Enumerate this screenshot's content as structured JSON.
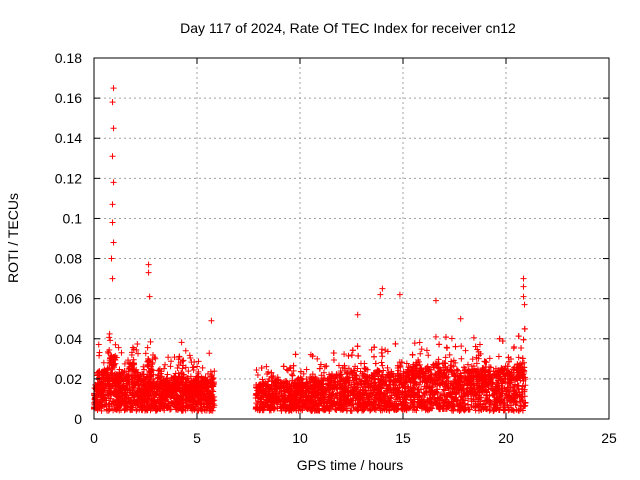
{
  "chart_data": {
    "type": "scatter",
    "title": "Day 117 of 2024, Rate Of TEC Index for receiver cn12",
    "xlabel": "GPS time / hours",
    "ylabel": "ROTI / TECUs",
    "xlim": [
      0,
      25
    ],
    "ylim": [
      0,
      0.18
    ],
    "x_ticks": [
      "0",
      "5",
      "10",
      "15",
      "20",
      "25"
    ],
    "y_ticks": [
      "0",
      "0.02",
      "0.04",
      "0.06",
      "0.08",
      "0.1",
      "0.12",
      "0.14",
      "0.16",
      "0.18"
    ],
    "grid": true,
    "marker": "plus",
    "color": "#ff0000",
    "segments": [
      {
        "x_start": 0.0,
        "x_end": 5.85
      },
      {
        "x_start": 7.85,
        "x_end": 20.95
      }
    ],
    "series": [
      {
        "x": [
          0.0,
          0.3,
          0.6,
          0.9,
          1.2,
          1.5,
          1.8,
          2.1,
          2.4,
          2.7,
          3.0,
          3.3,
          3.6,
          3.9,
          4.2,
          4.5,
          4.8,
          5.1,
          5.4,
          5.7,
          7.9,
          8.2,
          8.5,
          8.8,
          9.1,
          9.4,
          9.7,
          10.0,
          10.3,
          10.6,
          10.9,
          11.2,
          11.5,
          11.8,
          12.1,
          12.4,
          12.7,
          13.0,
          13.3,
          13.6,
          13.9,
          14.2,
          14.5,
          14.8,
          15.1,
          15.4,
          15.7,
          16.0,
          16.3,
          16.6,
          16.9,
          17.2,
          17.5,
          17.8,
          18.1,
          18.4,
          18.7,
          19.0,
          19.3,
          19.6,
          19.9,
          20.2,
          20.5,
          20.8
        ],
        "y": [
          0.012,
          0.018,
          0.02,
          0.025,
          0.018,
          0.016,
          0.022,
          0.019,
          0.017,
          0.024,
          0.016,
          0.015,
          0.014,
          0.016,
          0.018,
          0.015,
          0.014,
          0.017,
          0.015,
          0.016,
          0.012,
          0.013,
          0.012,
          0.014,
          0.013,
          0.014,
          0.013,
          0.015,
          0.014,
          0.016,
          0.014,
          0.015,
          0.016,
          0.017,
          0.015,
          0.018,
          0.02,
          0.017,
          0.016,
          0.018,
          0.019,
          0.017,
          0.018,
          0.02,
          0.018,
          0.02,
          0.022,
          0.021,
          0.019,
          0.022,
          0.02,
          0.021,
          0.019,
          0.018,
          0.02,
          0.021,
          0.019,
          0.02,
          0.018,
          0.019,
          0.02,
          0.021,
          0.02,
          0.022
        ]
      }
    ],
    "peaks": [
      {
        "x": 0.95,
        "y": 0.165
      },
      {
        "x": 0.9,
        "y": 0.158
      },
      {
        "x": 0.95,
        "y": 0.145
      },
      {
        "x": 0.9,
        "y": 0.131
      },
      {
        "x": 0.95,
        "y": 0.118
      },
      {
        "x": 0.9,
        "y": 0.107
      },
      {
        "x": 0.9,
        "y": 0.098
      },
      {
        "x": 0.95,
        "y": 0.088
      },
      {
        "x": 0.85,
        "y": 0.08
      },
      {
        "x": 0.9,
        "y": 0.07
      },
      {
        "x": 2.65,
        "y": 0.077
      },
      {
        "x": 2.65,
        "y": 0.073
      },
      {
        "x": 2.7,
        "y": 0.061
      },
      {
        "x": 5.7,
        "y": 0.049
      },
      {
        "x": 14.0,
        "y": 0.065
      },
      {
        "x": 13.9,
        "y": 0.062
      },
      {
        "x": 14.85,
        "y": 0.062
      },
      {
        "x": 16.6,
        "y": 0.059
      },
      {
        "x": 20.85,
        "y": 0.07
      },
      {
        "x": 20.85,
        "y": 0.066
      },
      {
        "x": 20.85,
        "y": 0.061
      },
      {
        "x": 20.9,
        "y": 0.057
      },
      {
        "x": 12.8,
        "y": 0.052
      },
      {
        "x": 17.8,
        "y": 0.05
      }
    ]
  }
}
